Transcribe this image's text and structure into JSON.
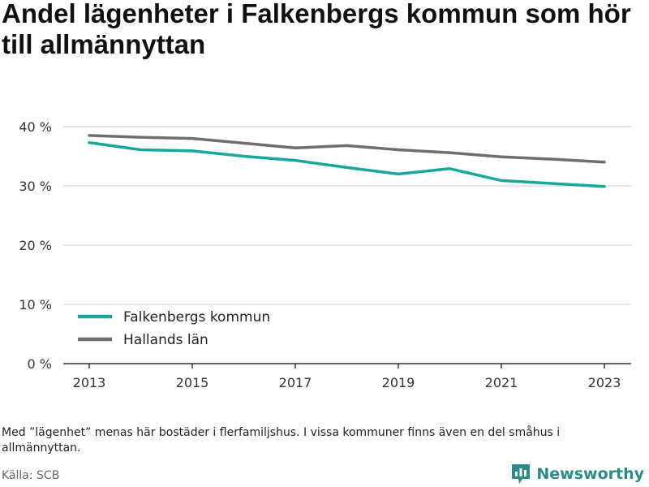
{
  "title": "Andel lägenheter i Falkenbergs kommun som hör till allmännyttan",
  "note": "Med ”lägenhet” menas här bostäder i flerfamiljshus. I vissa kommuner finns även en del småhus i allmännyttan.",
  "source": "Källa: SCB",
  "brand": "Newsworthy",
  "colors": {
    "series_primary": "#16a89a",
    "series_secondary": "#6e6e6e",
    "gridline": "#dddddd",
    "brand": "#2d8a8a"
  },
  "chart_data": {
    "type": "line",
    "x": [
      2013,
      2014,
      2015,
      2016,
      2017,
      2018,
      2019,
      2020,
      2021,
      2022,
      2023
    ],
    "x_ticks": [
      "2013",
      "2015",
      "2017",
      "2019",
      "2021",
      "2023"
    ],
    "y_ticks": [
      "0 %",
      "10 %",
      "20 %",
      "30 %",
      "40 %"
    ],
    "ylim": [
      0,
      40
    ],
    "grid": true,
    "legend_position": "bottom-left",
    "series": [
      {
        "name": "Falkenbergs kommun",
        "color": "#16a89a",
        "values": [
          37.3,
          36.1,
          35.9,
          35.0,
          34.3,
          33.1,
          32.0,
          32.9,
          30.9,
          30.4,
          29.9
        ]
      },
      {
        "name": "Hallands län",
        "color": "#6e6e6e",
        "values": [
          38.5,
          38.2,
          38.0,
          37.2,
          36.4,
          36.8,
          36.1,
          35.6,
          34.9,
          34.5,
          34.0
        ]
      }
    ]
  }
}
